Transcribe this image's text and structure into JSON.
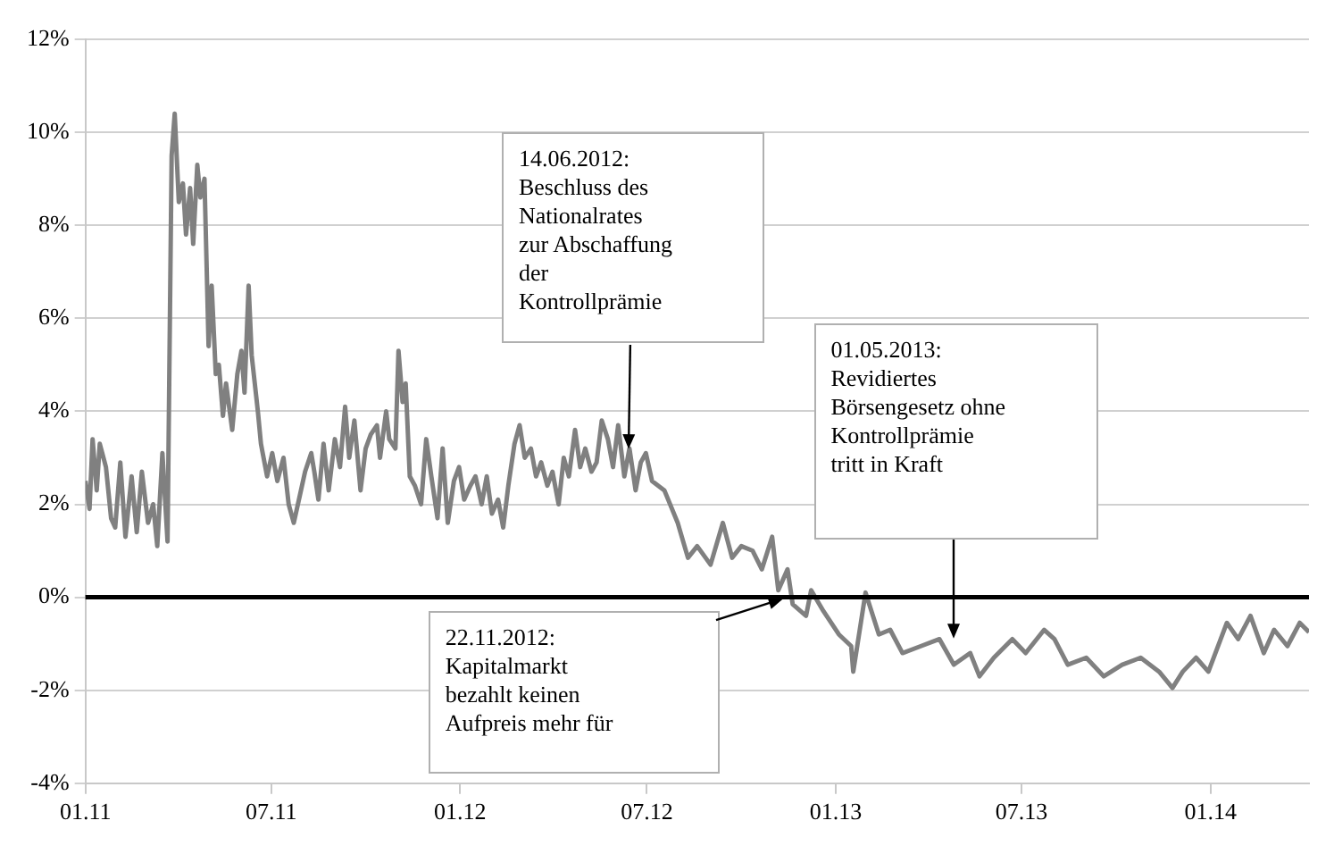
{
  "chart_data": {
    "type": "line",
    "x": [
      "2011-01-01",
      "2011-01-05",
      "2011-01-08",
      "2011-01-12",
      "2011-01-15",
      "2011-01-21",
      "2011-01-26",
      "2011-01-30",
      "2011-02-04",
      "2011-02-09",
      "2011-02-15",
      "2011-02-20",
      "2011-02-25",
      "2011-03-03",
      "2011-03-08",
      "2011-03-12",
      "2011-03-17",
      "2011-03-22",
      "2011-03-26",
      "2011-03-29",
      "2011-04-02",
      "2011-04-06",
      "2011-04-09",
      "2011-04-13",
      "2011-04-16",
      "2011-04-20",
      "2011-04-23",
      "2011-04-27",
      "2011-05-01",
      "2011-05-04",
      "2011-05-08",
      "2011-05-11",
      "2011-05-15",
      "2011-05-18",
      "2011-05-24",
      "2011-05-29",
      "2011-06-02",
      "2011-06-05",
      "2011-06-09",
      "2011-06-12",
      "2011-06-18",
      "2011-06-21",
      "2011-06-27",
      "2011-07-02",
      "2011-07-07",
      "2011-07-13",
      "2011-07-18",
      "2011-07-23",
      "2011-07-29",
      "2011-08-03",
      "2011-08-09",
      "2011-08-12",
      "2011-08-16",
      "2011-08-21",
      "2011-08-26",
      "2011-09-01",
      "2011-09-06",
      "2011-09-11",
      "2011-09-15",
      "2011-09-20",
      "2011-09-26",
      "2011-10-01",
      "2011-10-06",
      "2011-10-12",
      "2011-10-15",
      "2011-10-21",
      "2011-10-24",
      "2011-10-30",
      "2011-11-02",
      "2011-11-06",
      "2011-11-09",
      "2011-11-13",
      "2011-11-18",
      "2011-11-24",
      "2011-11-29",
      "2011-12-04",
      "2011-12-10",
      "2011-12-15",
      "2011-12-20",
      "2011-12-26",
      "2011-12-31",
      "2012-01-05",
      "2012-01-11",
      "2012-01-16",
      "2012-01-22",
      "2012-01-27",
      "2012-02-01",
      "2012-02-07",
      "2012-02-12",
      "2012-02-17",
      "2012-02-23",
      "2012-02-28",
      "2012-03-04",
      "2012-03-10",
      "2012-03-15",
      "2012-03-20",
      "2012-03-26",
      "2012-03-31",
      "2012-04-06",
      "2012-04-11",
      "2012-04-16",
      "2012-04-22",
      "2012-04-27",
      "2012-05-02",
      "2012-05-08",
      "2012-05-13",
      "2012-05-18",
      "2012-05-24",
      "2012-05-29",
      "2012-06-03",
      "2012-06-09",
      "2012-06-14",
      "2012-06-20",
      "2012-06-25",
      "2012-06-30",
      "2012-07-06",
      "2012-07-18",
      "2012-07-31",
      "2012-08-10",
      "2012-08-19",
      "2012-09-01",
      "2012-09-13",
      "2012-09-22",
      "2012-10-01",
      "2012-10-12",
      "2012-10-21",
      "2012-10-31",
      "2012-11-06",
      "2012-11-15",
      "2012-11-20",
      "2012-12-03",
      "2012-12-08",
      "2012-12-20",
      "2013-01-04",
      "2013-01-16",
      "2013-01-18",
      "2013-01-30",
      "2013-02-12",
      "2013-02-23",
      "2013-03-07",
      "2013-03-25",
      "2013-04-12",
      "2013-04-26",
      "2013-05-12",
      "2013-05-21",
      "2013-06-04",
      "2013-06-22",
      "2013-07-05",
      "2013-07-23",
      "2013-08-02",
      "2013-08-15",
      "2013-09-02",
      "2013-09-19",
      "2013-10-07",
      "2013-10-25",
      "2013-11-12",
      "2013-11-25",
      "2013-12-05",
      "2013-12-18",
      "2013-12-30",
      "2014-01-17",
      "2014-01-28",
      "2014-02-09",
      "2014-02-22",
      "2014-03-04",
      "2014-03-17",
      "2014-03-29",
      "2014-04-07"
    ],
    "series": [
      {
        "color": "#808080",
        "values": [
          2.5,
          1.9,
          3.4,
          2.3,
          3.3,
          2.8,
          1.7,
          1.5,
          2.9,
          1.3,
          2.6,
          1.4,
          2.7,
          1.6,
          2.0,
          1.1,
          3.1,
          1.2,
          9.5,
          10.4,
          8.5,
          8.9,
          7.8,
          8.8,
          7.6,
          9.3,
          8.6,
          9.0,
          5.4,
          6.7,
          4.8,
          5.0,
          3.9,
          4.6,
          3.6,
          4.8,
          5.3,
          4.4,
          6.7,
          5.2,
          4.0,
          3.3,
          2.6,
          3.1,
          2.5,
          3.0,
          2.0,
          1.6,
          2.2,
          2.7,
          3.1,
          2.7,
          2.1,
          3.3,
          2.3,
          3.4,
          2.8,
          4.1,
          3.0,
          3.8,
          2.3,
          3.2,
          3.5,
          3.7,
          3.0,
          4.0,
          3.4,
          3.2,
          5.3,
          4.2,
          4.6,
          2.6,
          2.4,
          2.0,
          3.4,
          2.6,
          1.7,
          3.2,
          1.6,
          2.5,
          2.8,
          2.1,
          2.4,
          2.6,
          2.0,
          2.6,
          1.8,
          2.1,
          1.5,
          2.4,
          3.3,
          3.7,
          3.0,
          3.2,
          2.6,
          2.9,
          2.4,
          2.7,
          2.0,
          3.0,
          2.6,
          3.6,
          2.8,
          3.2,
          2.7,
          2.9,
          3.8,
          3.4,
          2.8,
          3.7,
          2.6,
          3.2,
          2.3,
          2.9,
          3.1,
          2.5,
          2.3,
          1.6,
          0.85,
          1.1,
          0.7,
          1.6,
          0.85,
          1.1,
          1.0,
          0.6,
          1.3,
          0.15,
          0.6,
          -0.15,
          -0.4,
          0.15,
          -0.3,
          -0.8,
          -1.05,
          -1.6,
          0.1,
          -0.8,
          -0.7,
          -1.2,
          -1.05,
          -0.9,
          -1.45,
          -1.2,
          -1.7,
          -1.3,
          -0.9,
          -1.2,
          -0.7,
          -0.9,
          -1.45,
          -1.3,
          -1.7,
          -1.45,
          -1.3,
          -1.6,
          -1.95,
          -1.6,
          -1.3,
          -1.6,
          -0.55,
          -0.9,
          -0.4,
          -1.2,
          -0.7,
          -1.05,
          -0.55,
          -0.75
        ]
      }
    ],
    "xlim": [
      "2011-01-01",
      "2014-04-07"
    ],
    "xticks": [
      {
        "value": "2011-01-01",
        "label": "01.11"
      },
      {
        "value": "2011-07-01",
        "label": "07.11"
      },
      {
        "value": "2012-01-01",
        "label": "01.12"
      },
      {
        "value": "2012-07-01",
        "label": "07.12"
      },
      {
        "value": "2013-01-01",
        "label": "01.13"
      },
      {
        "value": "2013-07-01",
        "label": "07.13"
      },
      {
        "value": "2014-01-01",
        "label": "01.14"
      }
    ],
    "ylim": [
      -4,
      12
    ],
    "yticks": [
      {
        "value": -4,
        "label": "-4%"
      },
      {
        "value": -2,
        "label": "-2%"
      },
      {
        "value": 0,
        "label": "0%"
      },
      {
        "value": 2,
        "label": "2%"
      },
      {
        "value": 4,
        "label": "4%"
      },
      {
        "value": 6,
        "label": "6%"
      },
      {
        "value": 8,
        "label": "8%"
      },
      {
        "value": 10,
        "label": "10%"
      },
      {
        "value": 12,
        "label": "12%"
      }
    ],
    "ref_lines": [
      {
        "axis": "y",
        "value": 0,
        "color": "#000000"
      }
    ],
    "annotations": [
      {
        "text": "14.06.2012:\nBeschluss des\nNationalrates\nzur Abschaffung\nder\nKontrollprämie",
        "x": "2012-06-14",
        "y": 3.2
      },
      "22.11.2012:\nKapitalmarkt\nbezahlt keinen\nAufpreis mehr für",
      "01.05.2013:\nRevidiertes\nBörsengesetz ohne\nKontrollprämie\ntritt in Kraft"
    ],
    "grid": "y",
    "legend": false,
    "marker": "none",
    "line_style": "solid"
  }
}
